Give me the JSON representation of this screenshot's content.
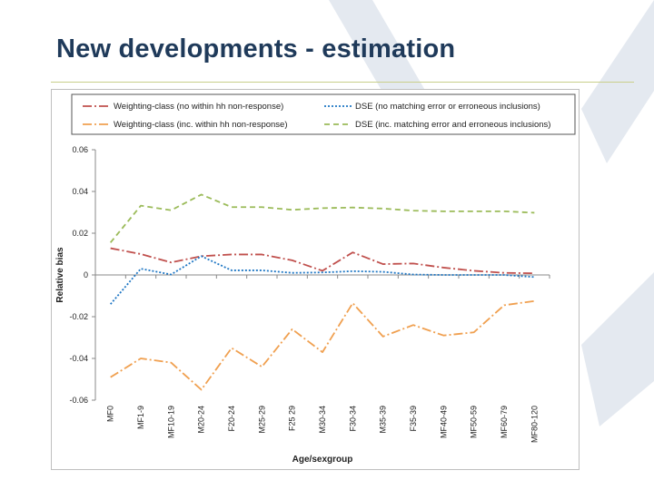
{
  "slide": {
    "title": "New developments - estimation"
  },
  "theme": {
    "title_color": "#1f3a5a",
    "decor_color": "#dde3ec",
    "rule_color": "#c9cf8a"
  },
  "chart_data": {
    "type": "line",
    "title": "",
    "xlabel": "Age/sexgroup",
    "ylabel": "Relative bias",
    "ylim": [
      -0.06,
      0.06
    ],
    "yticks": [
      0.06,
      0.04,
      0.02,
      0,
      -0.02,
      -0.04,
      -0.06
    ],
    "ytick_labels": [
      "0.06",
      "0.04",
      "0.02",
      "0",
      "-0.02",
      "-0.04",
      "-0.06"
    ],
    "grid": false,
    "legend_position": "top",
    "categories": [
      "MF0",
      "MF1-9",
      "MF10-19",
      "M20-24",
      "F20-24",
      "M25-29",
      "F25 29",
      "M30-34",
      "F30-34",
      "M35-39",
      "F35-39",
      "MF40-49",
      "MF50-59",
      "MF60-79",
      "MF80-120"
    ],
    "series": [
      {
        "name": "Weighting-class (no within hh non-response)",
        "color": "#c0504d",
        "style": "dash-dot",
        "values": [
          0.0128,
          0.01,
          0.006,
          0.009,
          0.0098,
          0.0098,
          0.007,
          0.002,
          0.0108,
          0.0052,
          0.0055,
          0.0035,
          0.002,
          0.001,
          0.0008
        ]
      },
      {
        "name": "DSE (no matching error or erroneous inclusions)",
        "color": "#1f77c4",
        "style": "dotted",
        "values": [
          -0.014,
          0.003,
          0.0002,
          0.009,
          0.0022,
          0.0022,
          0.001,
          0.0012,
          0.0018,
          0.0015,
          0.0002,
          0.0,
          0.0,
          0.0,
          -0.001
        ]
      },
      {
        "name": "Weighting-class (inc. within hh non-response)",
        "color": "#f0a050",
        "style": "dash-dot",
        "values": [
          -0.049,
          -0.04,
          -0.042,
          -0.055,
          -0.035,
          -0.044,
          -0.026,
          -0.037,
          -0.0135,
          -0.0295,
          -0.024,
          -0.029,
          -0.0275,
          -0.0145,
          -0.0125
        ]
      },
      {
        "name": "DSE (inc. matching error and erroneous inclusions)",
        "color": "#9bbb59",
        "style": "dashed",
        "values": [
          0.0155,
          0.0332,
          0.031,
          0.0385,
          0.0325,
          0.0325,
          0.0312,
          0.032,
          0.0323,
          0.0318,
          0.0308,
          0.0305,
          0.0305,
          0.0305,
          0.0298
        ]
      }
    ]
  }
}
